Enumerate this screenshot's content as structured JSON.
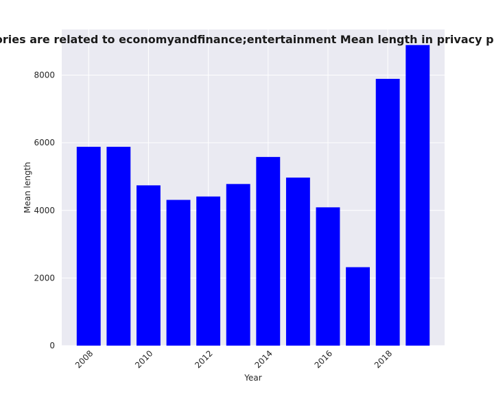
{
  "chart_data": {
    "type": "bar",
    "title": "Mean categories are related to economyandfinance;entertainment Mean length in privacy policies by year",
    "xlabel": "Year",
    "ylabel": "Mean length",
    "x": [
      2008,
      2009,
      2010,
      2011,
      2012,
      2013,
      2014,
      2015,
      2016,
      2017,
      2018,
      2019
    ],
    "values": [
      5880,
      5880,
      4740,
      4310,
      4410,
      4780,
      5580,
      4970,
      4090,
      2320,
      7890,
      8890
    ],
    "xticks": [
      2008,
      2010,
      2012,
      2014,
      2016,
      2018
    ],
    "yticks": [
      0,
      2000,
      4000,
      6000,
      8000
    ],
    "ylim": [
      0,
      9350
    ],
    "xlim": [
      2007.1,
      2019.9
    ],
    "bar_color": "#0000ff",
    "background_color": "#eaeaf2",
    "grid": true
  }
}
